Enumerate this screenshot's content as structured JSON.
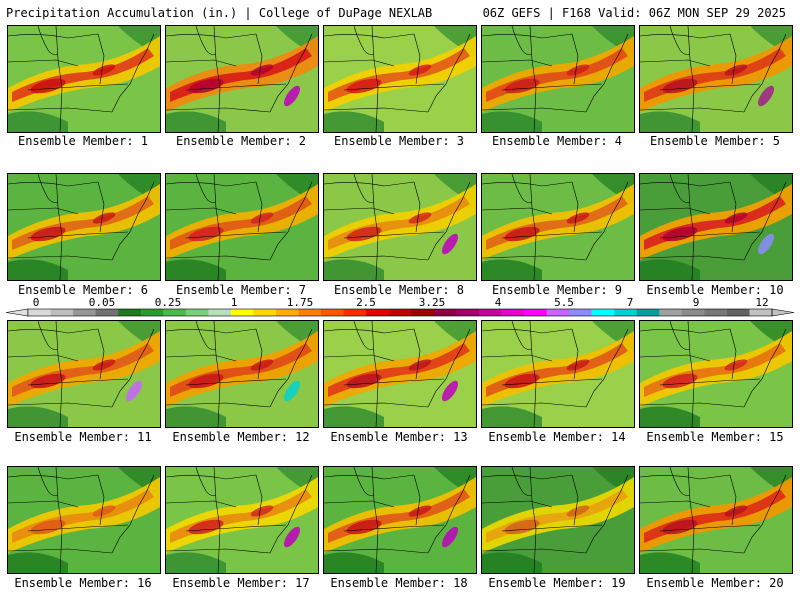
{
  "header": {
    "title": "Precipitation Accumulation (in.) | College of DuPage NEXLAB",
    "run_info": "06Z GEFS | F168 Valid: 06Z MON SEP 29 2025"
  },
  "colorbar": {
    "labels": [
      "0",
      "0.05",
      "0.25",
      "1",
      "1.75",
      "2.5",
      "3.25",
      "4",
      "5.5",
      "7",
      "9",
      "12"
    ],
    "colors": [
      "#d9d9d9",
      "#bdbdbd",
      "#969696",
      "#737373",
      "#1e7a1e",
      "#2e9a2e",
      "#4cb84c",
      "#7ad07a",
      "#b8e0b8",
      "#ffff00",
      "#ffd700",
      "#ffae00",
      "#ff7f00",
      "#ff5500",
      "#ff2a00",
      "#e60000",
      "#c20000",
      "#9e0000",
      "#8b0045",
      "#a0006e",
      "#c8009c",
      "#e600c8",
      "#ff00ff",
      "#c864ff",
      "#8c8cff",
      "#00ffff",
      "#00d2d2",
      "#00a0a0",
      "#a0a0a0",
      "#8c8c8c",
      "#787878",
      "#646464",
      "#c0c0c0"
    ]
  },
  "members": [
    {
      "label": "Ensemble Member: 1",
      "bg": "#7ac447",
      "mid": "#f0c800",
      "core": "#e03a1a",
      "hot": "#c81010",
      "peak": null,
      "green": "#2e8a2e"
    },
    {
      "label": "Ensemble Member: 2",
      "bg": "#8bc84a",
      "mid": "#ee8a10",
      "core": "#d81818",
      "hot": "#b00030",
      "peak": "#c000c0",
      "green": "#2e8a2e"
    },
    {
      "label": "Ensemble Member: 3",
      "bg": "#9ad04a",
      "mid": "#f2d000",
      "core": "#e05a18",
      "hot": "#d81818",
      "peak": null,
      "green": "#2e8a2e"
    },
    {
      "label": "Ensemble Member: 4",
      "bg": "#6cbc46",
      "mid": "#f0a800",
      "core": "#e04818",
      "hot": "#cc1c1c",
      "peak": null,
      "green": "#2a862a"
    },
    {
      "label": "Ensemble Member: 5",
      "bg": "#8cc848",
      "mid": "#f09800",
      "core": "#dd3a18",
      "hot": "#b81020",
      "peak": "#a0208c",
      "green": "#2e8a2e"
    },
    {
      "label": "Ensemble Member: 6",
      "bg": "#5cb440",
      "mid": "#eec000",
      "core": "#e06418",
      "hot": "#c81418",
      "peak": null,
      "green": "#1e7a1e"
    },
    {
      "label": "Ensemble Member: 7",
      "bg": "#5cb440",
      "mid": "#f0b000",
      "core": "#e05818",
      "hot": "#d02020",
      "peak": null,
      "green": "#1e7a1e"
    },
    {
      "label": "Ensemble Member: 8",
      "bg": "#8cc848",
      "mid": "#f0d000",
      "core": "#e88a10",
      "hot": "#d02020",
      "peak": "#c000c0",
      "green": "#2e8a2e"
    },
    {
      "label": "Ensemble Member: 9",
      "bg": "#6cbc46",
      "mid": "#f0c000",
      "core": "#e06418",
      "hot": "#c81418",
      "peak": null,
      "green": "#1e7a1e"
    },
    {
      "label": "Ensemble Member: 10",
      "bg": "#4a9e3a",
      "mid": "#f0a000",
      "core": "#d82020",
      "hot": "#b00030",
      "peak": "#8c8cff",
      "green": "#1e7a1e"
    },
    {
      "label": "Ensemble Member: 11",
      "bg": "#8cc848",
      "mid": "#f0a800",
      "core": "#e05a18",
      "hot": "#c81418",
      "peak": "#c864ff",
      "green": "#2e8a2e"
    },
    {
      "label": "Ensemble Member: 12",
      "bg": "#8cc848",
      "mid": "#f0a000",
      "core": "#e04818",
      "hot": "#c81418",
      "peak": "#00d2d2",
      "green": "#2e8a2e"
    },
    {
      "label": "Ensemble Member: 13",
      "bg": "#9ad04a",
      "mid": "#f0a800",
      "core": "#e03a1a",
      "hot": "#b81020",
      "peak": "#c000c0",
      "green": "#2e8a2e"
    },
    {
      "label": "Ensemble Member: 14",
      "bg": "#9ad04a",
      "mid": "#f0c000",
      "core": "#e05818",
      "hot": "#c81418",
      "peak": null,
      "green": "#2e8a2e"
    },
    {
      "label": "Ensemble Member: 15",
      "bg": "#7ac447",
      "mid": "#f0c800",
      "core": "#e87010",
      "hot": "#d02020",
      "peak": null,
      "green": "#1e7a1e"
    },
    {
      "label": "Ensemble Member: 16",
      "bg": "#5cb440",
      "mid": "#f0c800",
      "core": "#e88a10",
      "hot": "#e05818",
      "peak": null,
      "green": "#1e7a1e"
    },
    {
      "label": "Ensemble Member: 17",
      "bg": "#7ac447",
      "mid": "#f0d800",
      "core": "#e88a10",
      "hot": "#d02020",
      "peak": "#c000c0",
      "green": "#2e8a2e"
    },
    {
      "label": "Ensemble Member: 18",
      "bg": "#5cb440",
      "mid": "#f0c000",
      "core": "#e05818",
      "hot": "#c81418",
      "peak": "#c000c0",
      "green": "#1e7a1e"
    },
    {
      "label": "Ensemble Member: 19",
      "bg": "#4a9e3a",
      "mid": "#e8d800",
      "core": "#e8a010",
      "hot": "#d06018",
      "peak": null,
      "green": "#1e7a1e"
    },
    {
      "label": "Ensemble Member: 20",
      "bg": "#6cbc46",
      "mid": "#f09800",
      "core": "#dd2a18",
      "hot": "#b81020",
      "peak": null,
      "green": "#1e7a1e"
    }
  ]
}
